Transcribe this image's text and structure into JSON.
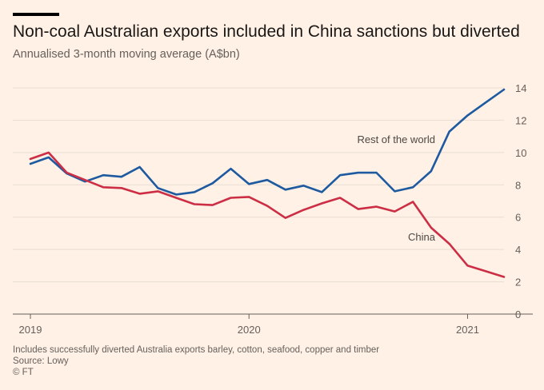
{
  "header": {
    "title": "Non-coal Australian exports included in China sanctions but diverted",
    "subtitle": "Annualised 3-month moving average (A$bn)"
  },
  "footer": {
    "note": "Includes successfully diverted Australia exports barley, cotton, seafood, copper and timber",
    "source": "Source: Lowy",
    "copyright": "© FT"
  },
  "chart_data": {
    "type": "line",
    "title": "Non-coal Australian exports included in China sanctions but diverted",
    "subtitle": "Annualised 3-month moving average (A$bn)",
    "xlabel": "",
    "ylabel": "",
    "ylim": [
      0,
      14
    ],
    "yticks": [
      0,
      2,
      4,
      6,
      8,
      10,
      12,
      14
    ],
    "xticks": [
      "2019",
      "2020",
      "2021"
    ],
    "grid": true,
    "x": [
      "2019-01",
      "2019-02",
      "2019-03",
      "2019-04",
      "2019-05",
      "2019-06",
      "2019-07",
      "2019-08",
      "2019-09",
      "2019-10",
      "2019-11",
      "2019-12",
      "2020-01",
      "2020-02",
      "2020-03",
      "2020-04",
      "2020-05",
      "2020-06",
      "2020-07",
      "2020-08",
      "2020-09",
      "2020-10",
      "2020-11",
      "2020-12",
      "2021-01",
      "2021-02",
      "2021-03"
    ],
    "series": [
      {
        "name": "Rest of the world",
        "color": "#1e5aa0",
        "values": [
          9.3,
          9.7,
          8.7,
          8.2,
          8.6,
          8.5,
          9.1,
          7.8,
          7.4,
          7.55,
          8.1,
          9.0,
          8.05,
          8.3,
          7.7,
          7.95,
          7.55,
          8.6,
          8.75,
          8.75,
          7.6,
          7.85,
          8.85,
          11.3,
          12.3,
          13.1,
          13.9
        ]
      },
      {
        "name": "China",
        "color": "#cc2e45",
        "values": [
          9.6,
          10.0,
          8.75,
          8.3,
          7.85,
          7.8,
          7.45,
          7.6,
          7.2,
          6.8,
          6.75,
          7.2,
          7.25,
          6.7,
          5.95,
          6.45,
          6.85,
          7.2,
          6.5,
          6.65,
          6.35,
          6.95,
          5.35,
          4.35,
          3.0,
          2.65,
          2.3
        ]
      }
    ],
    "annotations": [
      {
        "text": "Rest of the world",
        "series": "Rest of the world"
      },
      {
        "text": "China",
        "series": "China"
      }
    ],
    "colors": {
      "background": "#fff1e5",
      "grid": "#e8ddd3",
      "axis": "#66605c"
    }
  }
}
